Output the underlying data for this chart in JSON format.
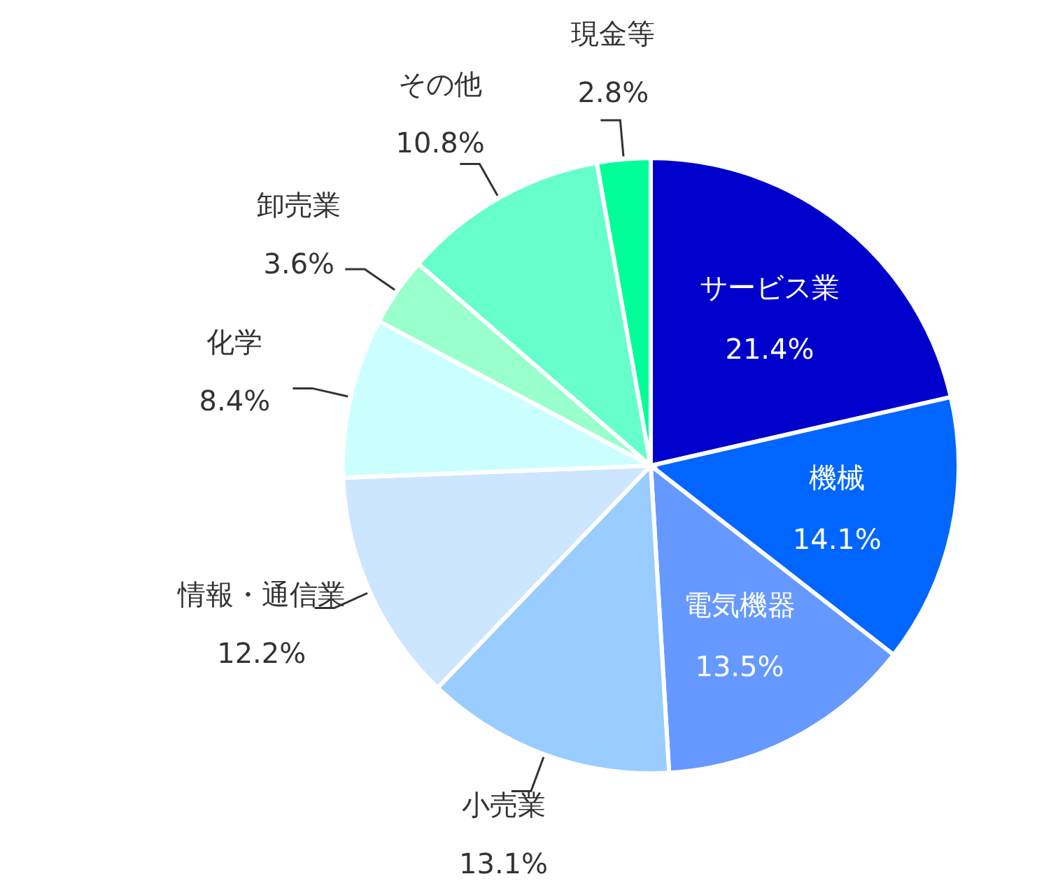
{
  "chart_data": {
    "type": "pie",
    "categories": [
      "サービス業",
      "機械",
      "電気機器",
      "小売業",
      "情報・通信業",
      "化学",
      "卸売業",
      "その他",
      "現金等"
    ],
    "values": [
      21.4,
      14.1,
      13.5,
      13.1,
      12.2,
      8.4,
      3.6,
      10.8,
      2.8
    ],
    "value_labels": [
      "21.4%",
      "14.1%",
      "13.5%",
      "13.1%",
      "12.2%",
      "8.4%",
      "3.6%",
      "10.8%",
      "2.8%"
    ],
    "colors": [
      "#0000cc",
      "#0066ff",
      "#6699ff",
      "#99ccff",
      "#cce6ff",
      "#ccffff",
      "#99ffcc",
      "#66ffcc",
      "#00ff99"
    ],
    "legend": false
  }
}
